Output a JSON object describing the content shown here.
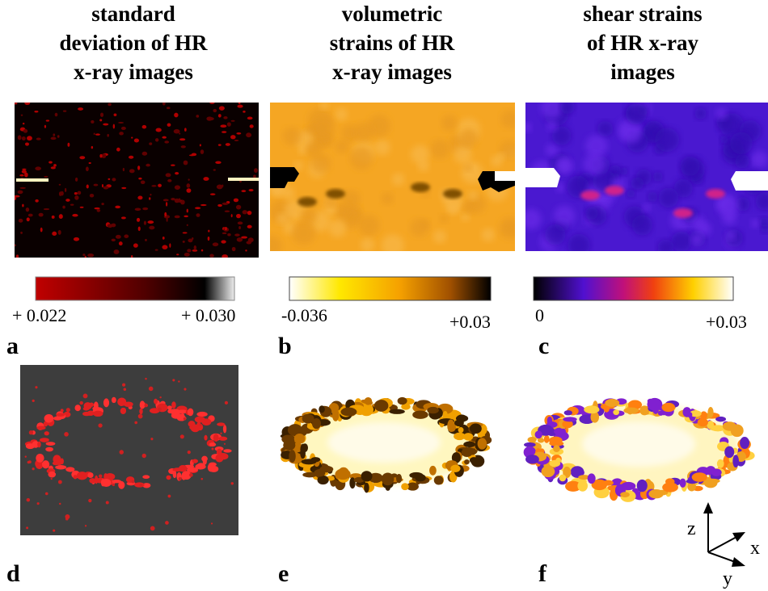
{
  "panels": [
    {
      "title": [
        "standard",
        "deviation of HR",
        "x-ray images"
      ],
      "colorbar": {
        "min_label": "+ 0.022",
        "max_label": "+ 0.030"
      },
      "letter": "a"
    },
    {
      "title": [
        "volumetric",
        "strains of HR",
        "x-ray images"
      ],
      "colorbar": {
        "min_label": "-0.036",
        "max_label": "+0.03"
      },
      "letter": "b"
    },
    {
      "title": [
        "shear strains",
        "of HR x-ray",
        "images"
      ],
      "colorbar": {
        "min_label": "0",
        "max_label": "+0.03"
      },
      "letter": "c"
    }
  ],
  "bottom_letters": [
    "d",
    "e",
    "f"
  ],
  "axes": {
    "z": "z",
    "x": "x",
    "y": "y"
  }
}
